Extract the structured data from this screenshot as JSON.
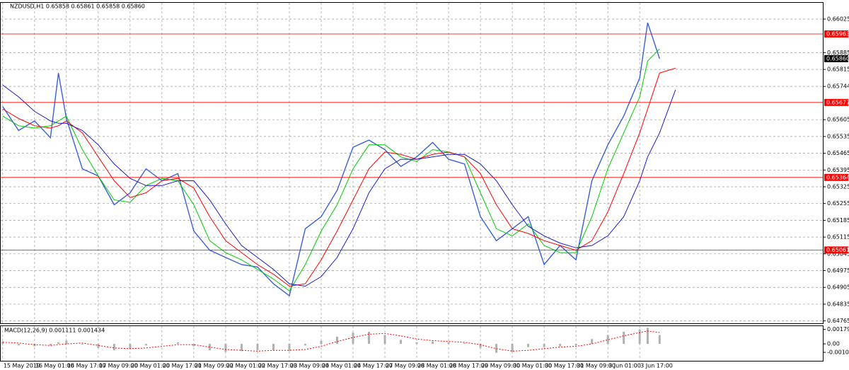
{
  "chart_data": [
    {
      "type": "line",
      "title": "NZDUSD,H1  0.65858 0.65861 0.65858 0.65860",
      "x": [
        0,
        8,
        16,
        24,
        28,
        32,
        40,
        48,
        56,
        64,
        72,
        80,
        88,
        96,
        104,
        112,
        120,
        128,
        136,
        144,
        152,
        160,
        168,
        176,
        184,
        192,
        200,
        208,
        216,
        224,
        232,
        240,
        248,
        256,
        264,
        272,
        280,
        288,
        296,
        304,
        312,
        320,
        324,
        330,
        338
      ],
      "series": [
        {
          "color": "#3a5fd9",
          "values": [
            0.6566,
            0.6556,
            0.656,
            0.6553,
            0.658,
            0.6561,
            0.654,
            0.6537,
            0.6525,
            0.653,
            0.654,
            0.6535,
            0.6538,
            0.6514,
            0.6506,
            0.6503,
            0.65,
            0.6499,
            0.6492,
            0.6487,
            0.6515,
            0.652,
            0.6531,
            0.6549,
            0.6552,
            0.6548,
            0.6541,
            0.6545,
            0.6551,
            0.6544,
            0.6542,
            0.652,
            0.651,
            0.6515,
            0.652,
            0.65,
            0.6508,
            0.6502,
            0.6535,
            0.655,
            0.6562,
            0.6578,
            0.6601,
            0.6586,
            null
          ]
        },
        {
          "color": "#00cc00",
          "values": [
            0.6562,
            0.6558,
            0.6557,
            0.6558,
            0.656,
            0.6562,
            0.6548,
            0.6537,
            0.6527,
            0.6526,
            0.6533,
            0.6536,
            0.6535,
            0.6525,
            0.651,
            0.6505,
            0.6502,
            0.6498,
            0.6494,
            0.6489,
            0.65,
            0.6514,
            0.6525,
            0.654,
            0.655,
            0.655,
            0.6545,
            0.6543,
            0.6548,
            0.6547,
            0.6545,
            0.653,
            0.6515,
            0.6512,
            0.6517,
            0.6508,
            0.6505,
            0.6505,
            0.652,
            0.654,
            0.6555,
            0.657,
            0.6585,
            0.659,
            null
          ]
        },
        {
          "color": "#ff0000",
          "values": [
            0.6565,
            0.6561,
            0.6558,
            0.6557,
            0.6558,
            0.656,
            0.6555,
            0.6545,
            0.6535,
            0.6528,
            0.653,
            0.6535,
            0.6536,
            0.6532,
            0.652,
            0.651,
            0.6505,
            0.65,
            0.6496,
            0.6491,
            0.6492,
            0.6502,
            0.6514,
            0.6527,
            0.654,
            0.6547,
            0.6546,
            0.6544,
            0.6546,
            0.6547,
            0.6545,
            0.6538,
            0.6525,
            0.6515,
            0.6513,
            0.651,
            0.6508,
            0.6506,
            0.651,
            0.6522,
            0.6538,
            0.6555,
            0.6565,
            0.658,
            0.6582
          ]
        },
        {
          "color": "#1a1acc",
          "values": [
            0.6575,
            0.657,
            0.6564,
            0.656,
            0.6559,
            0.6559,
            0.6556,
            0.655,
            0.6542,
            0.6536,
            0.6533,
            0.6533,
            0.6535,
            0.6535,
            0.6527,
            0.6517,
            0.6508,
            0.6503,
            0.6498,
            0.6492,
            0.6491,
            0.6495,
            0.6503,
            0.6515,
            0.653,
            0.654,
            0.6544,
            0.6544,
            0.6545,
            0.6546,
            0.6546,
            0.6542,
            0.6535,
            0.6525,
            0.6516,
            0.6512,
            0.6509,
            0.6507,
            0.6508,
            0.6512,
            0.652,
            0.6535,
            0.6545,
            0.6555,
            0.6573
          ]
        }
      ],
      "xlim": [
        -1,
        412
      ],
      "xticks": [
        {
          "value": 0,
          "label": "15 May 2019"
        },
        {
          "value": 16,
          "label": "16 May 01:00"
        },
        {
          "value": 32,
          "label": "16 May 17:00"
        },
        {
          "value": 48,
          "label": "17 May 09:00"
        },
        {
          "value": 64,
          "label": "20 May 01:00"
        },
        {
          "value": 80,
          "label": "20 May 17:00"
        },
        {
          "value": 96,
          "label": "21 May 09:00"
        },
        {
          "value": 112,
          "label": "22 May 01:00"
        },
        {
          "value": 128,
          "label": "22 May 17:00"
        },
        {
          "value": 144,
          "label": "23 May 09:00"
        },
        {
          "value": 160,
          "label": "24 May 01:00"
        },
        {
          "value": 176,
          "label": "24 May 17:00"
        },
        {
          "value": 192,
          "label": "27 May 09:00"
        },
        {
          "value": 208,
          "label": "28 May 01:00"
        },
        {
          "value": 224,
          "label": "28 May 17:00"
        },
        {
          "value": 240,
          "label": "29 May 09:00"
        },
        {
          "value": 256,
          "label": "30 May 01:00"
        },
        {
          "value": 272,
          "label": "30 May 17:00"
        },
        {
          "value": 288,
          "label": "31 May 09:00"
        },
        {
          "value": 304,
          "label": "3 Jun 01:00"
        },
        {
          "value": 320,
          "label": "3 Jun 17:00"
        }
      ],
      "ylim": [
        0.64755,
        0.6609
      ],
      "yticks": [
        0.66025,
        0.65885,
        0.65815,
        0.65744,
        0.65605,
        0.65535,
        0.65465,
        0.65395,
        0.65325,
        0.65255,
        0.65185,
        0.65115,
        0.65045,
        0.64975,
        0.64905,
        0.64835,
        0.64765
      ],
      "grid": true,
      "levels": [
        0.65963,
        0.65677,
        0.65364,
        0.65061
      ],
      "level_color": "#ff0000",
      "last_price": {
        "value": 0.6586,
        "label": "0.65860"
      }
    },
    {
      "type": "macd",
      "title": "MACD(12,26,9) 0.001111 0.001434",
      "series": [
        {
          "color": "#b0b0b0",
          "values": [
            0.0003,
            -0.0002,
            -0.0003,
            -0.0002,
            0.0002,
            0.0004,
            -0.0001,
            -0.0005,
            -0.0008,
            -0.0006,
            -0.0002,
            0,
            0.0002,
            -0.0003,
            -0.0008,
            -0.001,
            -0.0009,
            -0.0008,
            -0.0008,
            -0.0009,
            -0.0002,
            0.0004,
            0.0009,
            0.0014,
            0.0015,
            0.0011,
            0.0005,
            0.0002,
            0.0003,
            0.0002,
            0.0001,
            -0.0005,
            -0.0011,
            -0.001,
            -0.0004,
            -0.0004,
            -0.0003,
            -0.0002,
            0.0006,
            0.0011,
            0.0015,
            0.0018,
            0.002,
            0.0011,
            null
          ]
        },
        {
          "color": "#ff0000",
          "values": [
            0.0002,
            0.0001,
            -0.0001,
            -0.0002,
            -0.0001,
            0,
            0.0001,
            -0.0002,
            -0.0005,
            -0.0006,
            -0.0005,
            -0.0003,
            -0.0001,
            -0.0001,
            -0.0004,
            -0.0007,
            -0.0008,
            -0.0009,
            -0.0008,
            -0.0008,
            -0.0007,
            -0.0003,
            0.0003,
            0.0008,
            0.0012,
            0.0013,
            0.001,
            0.0006,
            0.0004,
            0.0003,
            0.0002,
            -0.0001,
            -0.0006,
            -0.0009,
            -0.0008,
            -0.0006,
            -0.0004,
            -0.0003,
            0,
            0.0005,
            0.001,
            0.0014,
            0.0016,
            0.0014,
            null
          ]
        }
      ],
      "ylim": [
        -0.0021,
        0.0022
      ],
      "yticks": [
        0.001791,
        {
          "value": 0,
          "label": "0.00"
        },
        -0.001051
      ]
    }
  ]
}
